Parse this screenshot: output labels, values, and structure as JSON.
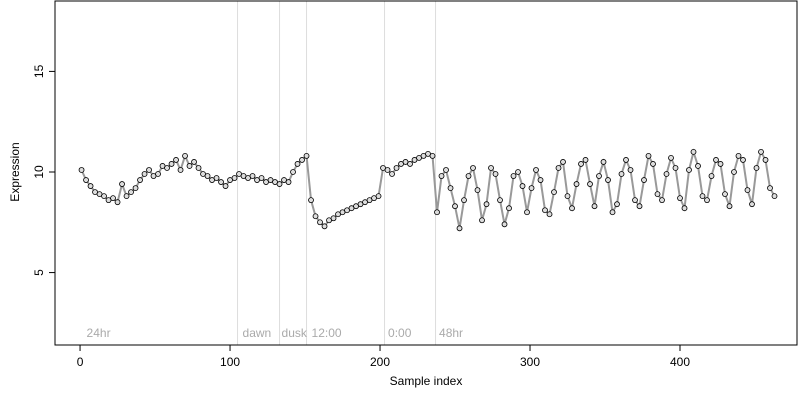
{
  "chart_data": {
    "type": "scatter",
    "xlabel": "Sample index",
    "ylabel": "Expression",
    "xlim": [
      -16.7,
      478
    ],
    "ylim": [
      1.4,
      18.5
    ],
    "xticks": [
      0,
      100,
      200,
      300,
      400
    ],
    "yticks": [
      5,
      10,
      15
    ],
    "vlines": [
      105,
      133,
      151,
      203,
      237
    ],
    "annotations": [
      {
        "text": "24hr",
        "x": 3
      },
      {
        "text": "dawn",
        "x": 107
      },
      {
        "text": "dusk",
        "x": 133
      },
      {
        "text": "12:00",
        "x": 153
      },
      {
        "text": "0:00",
        "x": 204
      },
      {
        "text": "48hr",
        "x": 238
      }
    ],
    "x": [
      1,
      4,
      7,
      10,
      13,
      16,
      19,
      22,
      25,
      28,
      31,
      34,
      37,
      40,
      43,
      46,
      49,
      52,
      55,
      58,
      61,
      64,
      67,
      70,
      73,
      76,
      79,
      82,
      85,
      88,
      91,
      94,
      97,
      100,
      103,
      106,
      109,
      112,
      115,
      118,
      121,
      124,
      127,
      130,
      133,
      136,
      139,
      142,
      145,
      148,
      151,
      154,
      157,
      160,
      163,
      166,
      169,
      172,
      175,
      178,
      181,
      184,
      187,
      190,
      193,
      196,
      199,
      202,
      205,
      208,
      211,
      214,
      217,
      220,
      223,
      226,
      229,
      232,
      235,
      238,
      241,
      244,
      247,
      250,
      253,
      256,
      259,
      262,
      265,
      268,
      271,
      274,
      277,
      280,
      283,
      286,
      289,
      292,
      295,
      298,
      301,
      304,
      307,
      310,
      313,
      316,
      319,
      322,
      325,
      328,
      331,
      334,
      337,
      340,
      343,
      346,
      349,
      352,
      355,
      358,
      361,
      364,
      367,
      370,
      373,
      376,
      379,
      382,
      385,
      388,
      391,
      394,
      397,
      400,
      403,
      406,
      409,
      412,
      415,
      418,
      421,
      424,
      427,
      430,
      433,
      436,
      439,
      442,
      445,
      448,
      451,
      454,
      457,
      460,
      463
    ],
    "series": [
      {
        "color": "#999999",
        "marker_fill": "#dddddd",
        "values": [
          10.1,
          9.6,
          9.3,
          9.0,
          8.9,
          8.8,
          8.6,
          8.7,
          8.5,
          9.4,
          8.8,
          9.0,
          9.2,
          9.6,
          9.9,
          10.1,
          9.8,
          9.9,
          10.3,
          10.2,
          10.4,
          10.6,
          10.1,
          10.8,
          10.3,
          10.5,
          10.2,
          9.9,
          9.8,
          9.6,
          9.7,
          9.5,
          9.3,
          9.6,
          9.7,
          9.9,
          9.8,
          9.7,
          9.8,
          9.6,
          9.7,
          9.5,
          9.6,
          9.5,
          9.4,
          9.6,
          9.5,
          10.0,
          10.4,
          10.6,
          10.8,
          8.6,
          7.8,
          7.5,
          7.3,
          7.6,
          7.7,
          7.9,
          8.0,
          8.1,
          8.2,
          8.3,
          8.4,
          8.5,
          8.6,
          8.7,
          8.8,
          10.2,
          10.1,
          9.9,
          10.2,
          10.4,
          10.5,
          10.4,
          10.6,
          10.7,
          10.8,
          10.9,
          10.8,
          8.0,
          9.8,
          10.1,
          9.2,
          8.3,
          7.2,
          8.6,
          9.8,
          10.2,
          9.1,
          7.6,
          8.4,
          10.2,
          9.9,
          8.6,
          7.4,
          8.2,
          9.8,
          10.0,
          9.3,
          8.0,
          9.2,
          10.1,
          9.6,
          8.1,
          7.9,
          9.0,
          10.2,
          10.5,
          8.8,
          8.2,
          9.4,
          10.4,
          10.6,
          9.4,
          8.3,
          9.8,
          10.5,
          9.6,
          8.0,
          8.4,
          9.9,
          10.6,
          10.1,
          8.6,
          8.3,
          9.6,
          10.8,
          10.4,
          8.9,
          8.6,
          9.9,
          10.7,
          10.2,
          8.7,
          8.2,
          10.1,
          11.0,
          10.3,
          8.8,
          8.6,
          9.8,
          10.6,
          10.4,
          8.9,
          8.3,
          10.0,
          10.8,
          10.6,
          9.1,
          8.4,
          10.2,
          11.0,
          10.6,
          9.2,
          8.8
        ]
      }
    ]
  }
}
